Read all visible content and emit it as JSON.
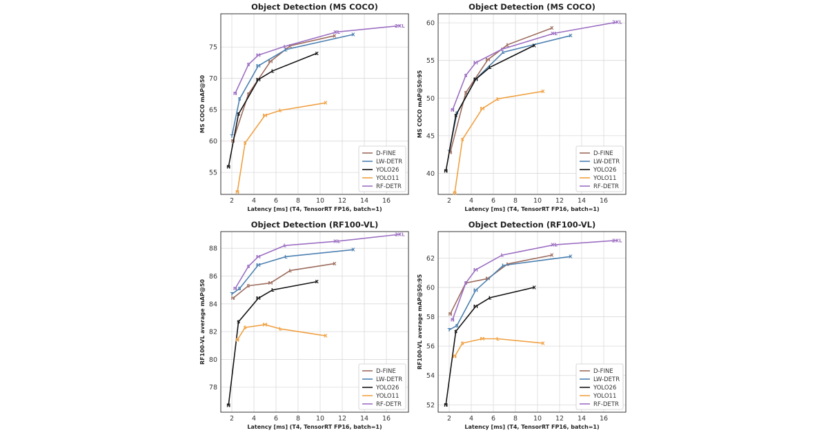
{
  "colors": {
    "D-FINE": "#9c6b5c",
    "LW-DETR": "#4a7fb0",
    "YOLO26": "#111111",
    "YOLO11": "#f0a040",
    "RF-DETR": "#9b6ec2"
  },
  "legend_entries": [
    "D-FINE",
    "LW-DETR",
    "YOLO26",
    "YOLO11",
    "RF-DETR"
  ],
  "chart_data": [
    {
      "type": "line",
      "title": "Object Detection (MS COCO)",
      "xlabel": "Latency [ms] (T4, TensorRT FP16, batch=1)",
      "ylabel": "MS COCO mAP@50",
      "xlim": [
        1,
        18
      ],
      "ylim": [
        51.5,
        80.3
      ],
      "xticks": [
        2,
        4,
        6,
        8,
        10,
        12,
        14,
        16
      ],
      "yticks": [
        55,
        60,
        65,
        70,
        75
      ],
      "legend": "bottom-right",
      "grid": true,
      "series": [
        {
          "name": "D-FINE",
          "labels": [
            "N",
            "S",
            "M",
            "L",
            "X"
          ],
          "x": [
            2.1,
            3.5,
            5.5,
            7.3,
            11.3
          ],
          "y": [
            60.0,
            67.5,
            72.7,
            75.2,
            76.8
          ]
        },
        {
          "name": "LW-DETR",
          "labels": [
            "T",
            "S",
            "M",
            "L",
            "X"
          ],
          "x": [
            2.0,
            2.7,
            4.4,
            6.9,
            13.0
          ],
          "y": [
            60.8,
            66.7,
            72.0,
            74.6,
            77.0
          ]
        },
        {
          "name": "YOLO26",
          "labels": [
            "N",
            "S",
            "M",
            "L",
            "X"
          ],
          "x": [
            1.7,
            2.6,
            4.4,
            5.7,
            9.7
          ],
          "y": [
            55.9,
            64.3,
            69.8,
            71.2,
            74.0
          ]
        },
        {
          "name": "YOLO11",
          "labels": [
            "N",
            "S",
            "M",
            "L",
            "X"
          ],
          "x": [
            2.5,
            3.2,
            5.0,
            6.4,
            10.5
          ],
          "y": [
            51.9,
            59.7,
            64.1,
            64.9,
            66.1
          ]
        },
        {
          "name": "RF-DETR",
          "labels": [
            "N",
            "S",
            "M",
            "L",
            "XL",
            "2XL"
          ],
          "x": [
            2.3,
            3.5,
            4.4,
            6.8,
            11.5,
            17.2
          ],
          "y": [
            67.6,
            72.2,
            73.7,
            75.1,
            77.4,
            78.4
          ]
        }
      ]
    },
    {
      "type": "line",
      "title": "Object Detection (MS COCO)",
      "xlabel": "Latency [ms] (T4, TensorRT FP16, batch=1)",
      "ylabel": "MS COCO mAP@50:95",
      "xlim": [
        1,
        18
      ],
      "ylim": [
        37.2,
        61.2
      ],
      "xticks": [
        2,
        4,
        6,
        8,
        10,
        12,
        14,
        16
      ],
      "yticks": [
        40,
        45,
        50,
        55,
        60
      ],
      "legend": "bottom-right",
      "grid": true,
      "series": [
        {
          "name": "D-FINE",
          "labels": [
            "N",
            "S",
            "M",
            "L",
            "X"
          ],
          "x": [
            2.1,
            3.5,
            5.5,
            7.3,
            11.3
          ],
          "y": [
            42.8,
            50.7,
            55.1,
            57.1,
            59.3
          ]
        },
        {
          "name": "LW-DETR",
          "labels": [
            "T",
            "S",
            "M",
            "L",
            "X"
          ],
          "x": [
            2.0,
            2.7,
            4.4,
            6.9,
            13.0
          ],
          "y": [
            42.9,
            48.0,
            52.5,
            56.1,
            58.3
          ]
        },
        {
          "name": "YOLO26",
          "labels": [
            "N",
            "S",
            "M",
            "L",
            "X"
          ],
          "x": [
            1.7,
            2.6,
            4.4,
            5.7,
            9.7
          ],
          "y": [
            40.3,
            47.7,
            52.5,
            54.1,
            57.0
          ]
        },
        {
          "name": "YOLO11",
          "labels": [
            "N",
            "S",
            "M",
            "L",
            "X"
          ],
          "x": [
            2.5,
            3.2,
            5.0,
            6.4,
            10.5
          ],
          "y": [
            37.4,
            44.5,
            48.6,
            49.9,
            50.9
          ]
        },
        {
          "name": "RF-DETR",
          "labels": [
            "N",
            "S",
            "M",
            "L",
            "XL",
            "2XL"
          ],
          "x": [
            2.3,
            3.5,
            4.4,
            6.8,
            11.5,
            17.2
          ],
          "y": [
            48.4,
            53.0,
            54.7,
            56.5,
            58.6,
            60.1
          ]
        }
      ]
    },
    {
      "type": "line",
      "title": "Object Detection (RF100-VL)",
      "xlabel": "Latency [ms] (T4, TensorRT FP16, batch=1)",
      "ylabel": "RF100-VL average mAP@50",
      "xlim": [
        1,
        18
      ],
      "ylim": [
        76.2,
        89.2
      ],
      "xticks": [
        2,
        4,
        6,
        8,
        10,
        12,
        14,
        16
      ],
      "yticks": [
        78,
        80,
        82,
        84,
        86,
        88
      ],
      "legend": "bottom-right",
      "grid": true,
      "series": [
        {
          "name": "D-FINE",
          "labels": [
            "N",
            "S",
            "M",
            "L",
            "X"
          ],
          "x": [
            2.1,
            3.5,
            5.5,
            7.3,
            11.3
          ],
          "y": [
            84.4,
            85.3,
            85.5,
            86.4,
            86.9
          ]
        },
        {
          "name": "LW-DETR",
          "labels": [
            "T",
            "S",
            "M",
            "L",
            "X"
          ],
          "x": [
            2.0,
            2.7,
            4.4,
            6.9,
            13.0
          ],
          "y": [
            84.7,
            85.1,
            86.8,
            87.4,
            87.9
          ]
        },
        {
          "name": "YOLO26",
          "labels": [
            "N",
            "S",
            "M",
            "L",
            "X"
          ],
          "x": [
            1.7,
            2.6,
            4.4,
            5.7,
            9.7
          ],
          "y": [
            76.7,
            82.7,
            84.4,
            85.0,
            85.6
          ]
        },
        {
          "name": "YOLO11",
          "labels": [
            "N",
            "S",
            "M",
            "L",
            "X"
          ],
          "x": [
            2.5,
            3.2,
            5.0,
            6.4,
            10.5
          ],
          "y": [
            81.4,
            82.3,
            82.5,
            82.2,
            81.7
          ]
        },
        {
          "name": "RF-DETR",
          "labels": [
            "N",
            "S",
            "M",
            "L",
            "XL",
            "2XL"
          ],
          "x": [
            2.3,
            3.5,
            4.4,
            6.8,
            11.5,
            17.2
          ],
          "y": [
            85.1,
            86.7,
            87.4,
            88.2,
            88.5,
            89.0
          ]
        }
      ]
    },
    {
      "type": "line",
      "title": "Object Detection (RF100-VL)",
      "xlabel": "Latency [ms] (T4, TensorRT FP16, batch=1)",
      "ylabel": "RF100-VL average mAP@50:95",
      "xlim": [
        1,
        18
      ],
      "ylim": [
        51.5,
        63.8
      ],
      "xticks": [
        2,
        4,
        6,
        8,
        10,
        12,
        14,
        16
      ],
      "yticks": [
        52,
        54,
        56,
        58,
        60,
        62
      ],
      "legend": "bottom-right",
      "grid": true,
      "series": [
        {
          "name": "D-FINE",
          "labels": [
            "N",
            "S",
            "M",
            "L",
            "X"
          ],
          "x": [
            2.1,
            3.5,
            5.5,
            7.3,
            11.3
          ],
          "y": [
            58.2,
            60.3,
            60.6,
            61.6,
            62.2
          ]
        },
        {
          "name": "LW-DETR",
          "labels": [
            "T",
            "S",
            "M",
            "L",
            "X"
          ],
          "x": [
            2.0,
            2.7,
            4.4,
            6.9,
            13.0
          ],
          "y": [
            57.1,
            57.4,
            59.8,
            61.5,
            62.1
          ]
        },
        {
          "name": "YOLO26",
          "labels": [
            "N",
            "S",
            "M",
            "L",
            "X"
          ],
          "x": [
            1.7,
            2.6,
            4.4,
            5.7,
            9.7
          ],
          "y": [
            52.0,
            57.0,
            58.7,
            59.3,
            60.0
          ]
        },
        {
          "name": "YOLO11",
          "labels": [
            "N",
            "S",
            "M",
            "L",
            "X"
          ],
          "x": [
            2.5,
            3.2,
            5.0,
            6.4,
            10.5
          ],
          "y": [
            55.3,
            56.2,
            56.5,
            56.5,
            56.2
          ]
        },
        {
          "name": "RF-DETR",
          "labels": [
            "N",
            "S",
            "M",
            "L",
            "XL",
            "2XL"
          ],
          "x": [
            2.3,
            3.5,
            4.4,
            6.8,
            11.5,
            17.2
          ],
          "y": [
            57.8,
            60.3,
            61.2,
            62.2,
            62.9,
            63.2
          ]
        }
      ]
    }
  ]
}
